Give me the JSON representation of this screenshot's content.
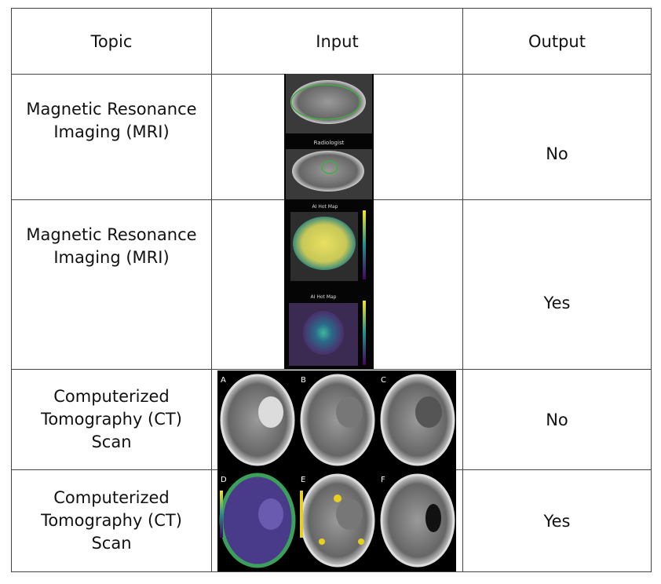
{
  "header": {
    "cells": [
      "Topic",
      "Input",
      "Output"
    ]
  },
  "rows": [
    {
      "topic": "Magnetic Resonance Imaging (MRI)",
      "output": "No"
    },
    {
      "topic": "Magnetic Resonance Imaging (MRI)",
      "output": "Yes"
    },
    {
      "topic": "Computerized Tomography (CT) Scan",
      "output": "No"
    },
    {
      "topic": "Computerized Tomography (CT) Scan",
      "output": "Yes"
    }
  ],
  "mri_image": {
    "labels": [
      "Radiologist",
      "AI Hot Map",
      "AI Hot Map"
    ]
  },
  "ct_image": {
    "labels": [
      "A",
      "B",
      "C",
      "D",
      "E",
      "F"
    ]
  }
}
